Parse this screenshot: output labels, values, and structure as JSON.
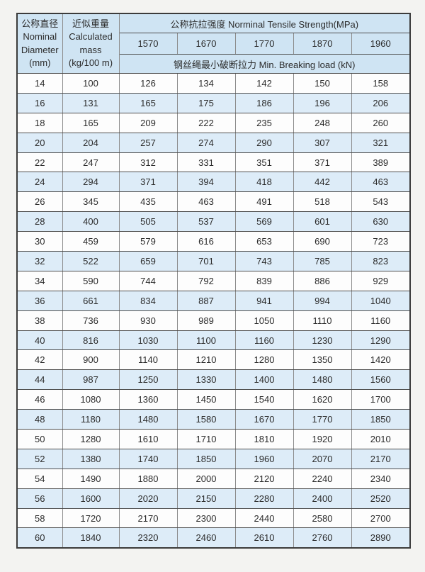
{
  "page": {
    "background_color": "#f3f3f1",
    "header_fill_color": "#cfe4f3",
    "alt_row_fill_color": "#ddecf8",
    "row_fill_color": "#fdfdfd"
  },
  "table": {
    "header": {
      "diameter_label": "公称直径\nNominal\nDiameter\n(mm)",
      "mass_label": "近似重量\nCalculated\nmass\n(kg/100 m)",
      "tensile_title": "公称抗拉强度 Norminal Tensile Strength(MPa)",
      "grades": [
        "1570",
        "1670",
        "1770",
        "1870",
        "1960"
      ],
      "breaking_title": "钢丝绳最小破断拉力 Min. Breaking load (kN)"
    },
    "chart_data": {
      "type": "table",
      "columns": [
        "Nominal Diameter (mm)",
        "Calculated mass (kg/100 m)",
        "1570",
        "1670",
        "1770",
        "1870",
        "1960"
      ]
    },
    "rows": [
      [
        14,
        100,
        126,
        134,
        142,
        150,
        158
      ],
      [
        16,
        131,
        165,
        175,
        186,
        196,
        206
      ],
      [
        18,
        165,
        209,
        222,
        235,
        248,
        260
      ],
      [
        20,
        204,
        257,
        274,
        290,
        307,
        321
      ],
      [
        22,
        247,
        312,
        331,
        351,
        371,
        389
      ],
      [
        24,
        294,
        371,
        394,
        418,
        442,
        463
      ],
      [
        26,
        345,
        435,
        463,
        491,
        518,
        543
      ],
      [
        28,
        400,
        505,
        537,
        569,
        601,
        630
      ],
      [
        30,
        459,
        579,
        616,
        653,
        690,
        723
      ],
      [
        32,
        522,
        659,
        701,
        743,
        785,
        823
      ],
      [
        34,
        590,
        744,
        792,
        839,
        886,
        929
      ],
      [
        36,
        661,
        834,
        887,
        941,
        994,
        1040
      ],
      [
        38,
        736,
        930,
        989,
        1050,
        1110,
        1160
      ],
      [
        40,
        816,
        1030,
        1100,
        1160,
        1230,
        1290
      ],
      [
        42,
        900,
        1140,
        1210,
        1280,
        1350,
        1420
      ],
      [
        44,
        987,
        1250,
        1330,
        1400,
        1480,
        1560
      ],
      [
        46,
        1080,
        1360,
        1450,
        1540,
        1620,
        1700
      ],
      [
        48,
        1180,
        1480,
        1580,
        1670,
        1770,
        1850
      ],
      [
        50,
        1280,
        1610,
        1710,
        1810,
        1920,
        2010
      ],
      [
        52,
        1380,
        1740,
        1850,
        1960,
        2070,
        2170
      ],
      [
        54,
        1490,
        1880,
        2000,
        2120,
        2240,
        2340
      ],
      [
        56,
        1600,
        2020,
        2150,
        2280,
        2400,
        2520
      ],
      [
        58,
        1720,
        2170,
        2300,
        2440,
        2580,
        2700
      ],
      [
        60,
        1840,
        2320,
        2460,
        2610,
        2760,
        2890
      ]
    ]
  }
}
